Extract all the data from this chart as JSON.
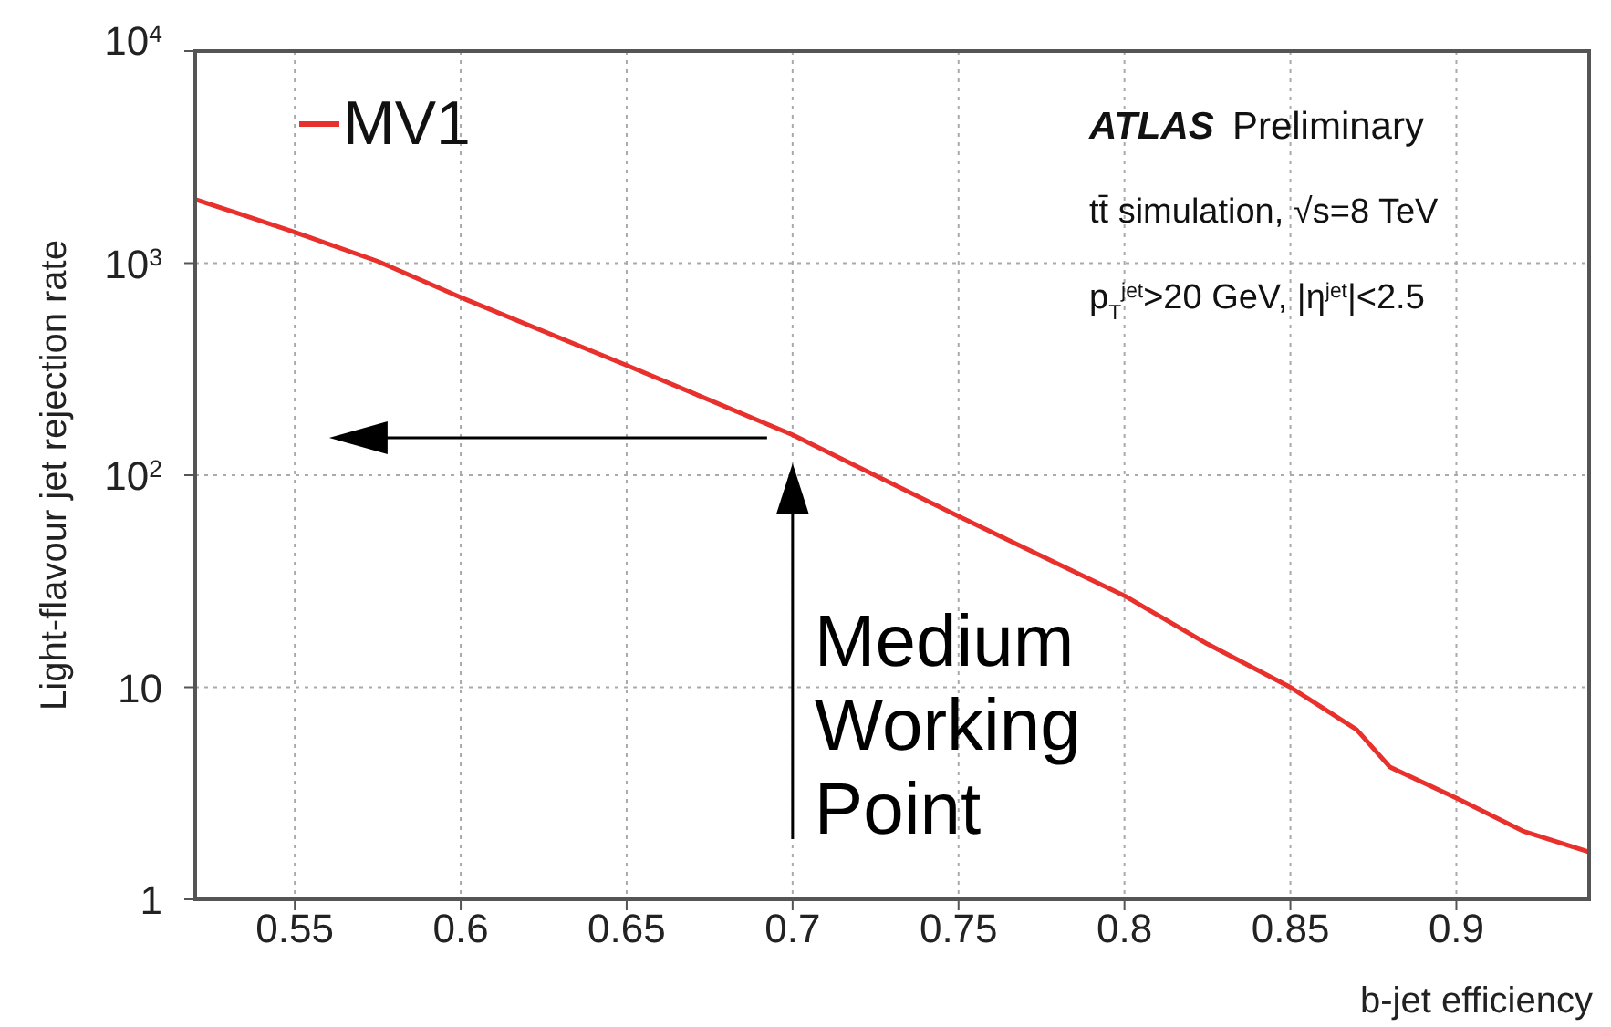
{
  "chart_data": {
    "type": "line",
    "title": "ATLAS Preliminary",
    "xlabel": "b-jet efficiency",
    "ylabel": "Light-flavour jet rejection rate",
    "x": [
      0.52,
      0.55,
      0.575,
      0.6,
      0.65,
      0.7,
      0.75,
      0.8,
      0.825,
      0.85,
      0.87,
      0.88,
      0.9,
      0.92,
      0.94
    ],
    "series": [
      {
        "name": "MV1",
        "color": "#e8302c",
        "values": [
          2000,
          1400,
          1020,
          690,
          330,
          155,
          64,
          27,
          16,
          10,
          6.3,
          4.2,
          3.0,
          2.1,
          1.67
        ]
      }
    ],
    "xlim": [
      0.52,
      0.94
    ],
    "xticks": [
      0.55,
      0.6,
      0.65,
      0.7,
      0.75,
      0.8,
      0.85,
      0.9
    ],
    "ylim": [
      1,
      10000
    ],
    "yticks": [
      1,
      10,
      {
        "value": 100,
        "label": "10$^{2}$"
      },
      {
        "value": 1000,
        "label": "10$^{3}$"
      },
      {
        "value": 10000,
        "label": "10$^{4}$"
      }
    ],
    "log": "y",
    "grid": true,
    "legend": "top left",
    "marker": "none",
    "line_style": "solid",
    "annotations": [
      "tt̄ simulation, √s=8 TeV",
      "p$_{T}$$^{jet}$>20 GeV, |η$^{jet}$|<2.5",
      {
        "text": "Medium Working Point",
        "x": 0.7,
        "y": 150
      }
    ]
  }
}
